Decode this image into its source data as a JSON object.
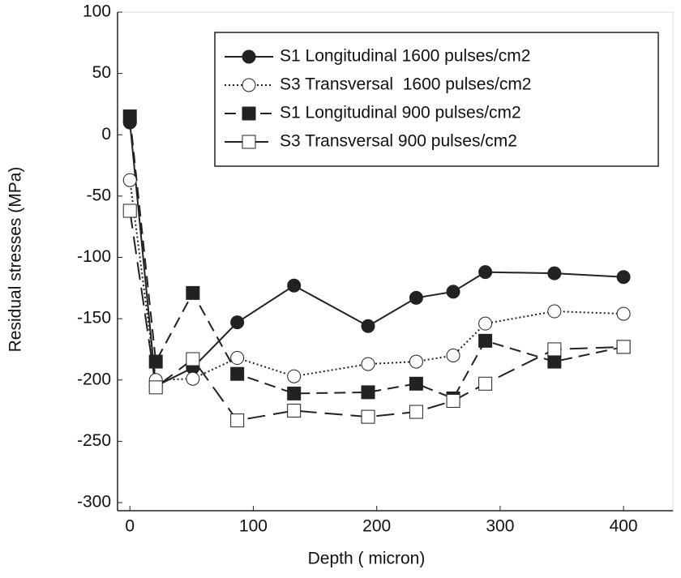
{
  "chart_data": {
    "type": "line",
    "x_label": "Depth ( micron)",
    "y_label": "Residual stresses (MPa)",
    "x": [
      0,
      21,
      51,
      87,
      133,
      193,
      232,
      262,
      288,
      344,
      400
    ],
    "xlim": [
      -10,
      440
    ],
    "xticks": [
      0,
      100,
      200,
      300,
      400
    ],
    "ylim": [
      -300,
      100
    ],
    "yticks": [
      100,
      50,
      0,
      -50,
      -100,
      -150,
      -200,
      -250,
      -300
    ],
    "legend": "upper right",
    "series": [
      {
        "name": "S1 Longitudinal 1600 pulses/cm2",
        "color": "#222222",
        "marker": "circle",
        "filled": true,
        "dash": "solid",
        "values": [
          10,
          -205,
          -190,
          -153,
          -123,
          -156,
          -133,
          -128,
          -112,
          -113,
          -116
        ]
      },
      {
        "name": "S3 Transversal  1600 pulses/cm2",
        "color": "#222222",
        "marker": "circle",
        "filled": false,
        "dash": "dotted",
        "values": [
          -37,
          -200,
          -199,
          -182,
          -197,
          -187,
          -185,
          -180,
          -154,
          -144,
          -146
        ]
      },
      {
        "name": "S1 Longitudinal 900 pulses/cm2",
        "color": "#222222",
        "marker": "square",
        "filled": true,
        "dash": "dashed",
        "values": [
          15,
          -185,
          -129,
          -195,
          -211,
          -210,
          -203,
          -215,
          -168,
          -185,
          -173
        ]
      },
      {
        "name": "S3 Transversal 900 pulses/cm2",
        "color": "#222222",
        "marker": "square",
        "filled": false,
        "dash": "longdash",
        "values": [
          -62,
          -206,
          -183,
          -233,
          -225,
          -230,
          -226,
          -217,
          -203,
          -175,
          -173
        ]
      }
    ]
  }
}
